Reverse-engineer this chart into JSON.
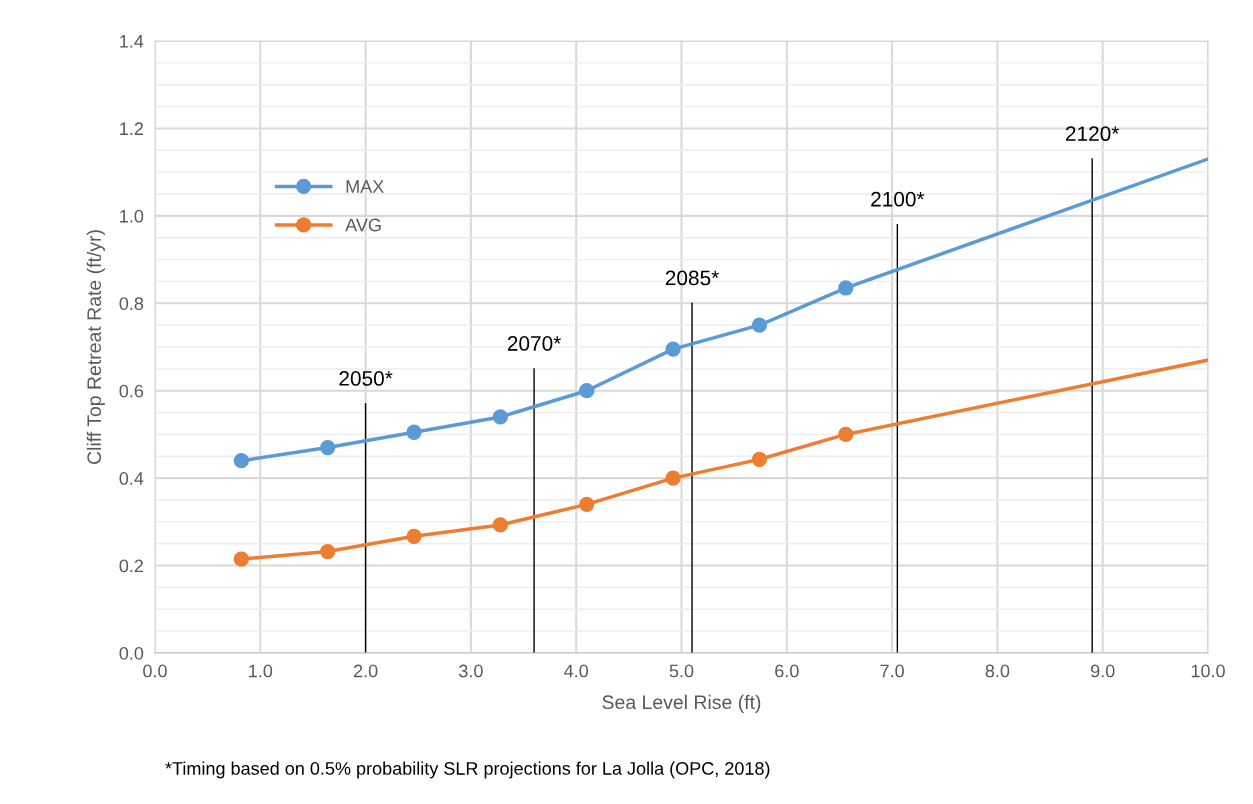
{
  "chart_data": {
    "type": "line",
    "xlabel": "Sea Level Rise (ft)",
    "ylabel": "Cliff Top Retreat Rate (ft/yr)",
    "xlim": [
      0,
      10
    ],
    "xticks": [
      {
        "value": 0,
        "label": "0.0"
      },
      {
        "value": 1,
        "label": "1.0"
      },
      {
        "value": 2,
        "label": "2.0"
      },
      {
        "value": 3,
        "label": "3.0"
      },
      {
        "value": 4,
        "label": "4.0"
      },
      {
        "value": 5,
        "label": "5.0"
      },
      {
        "value": 6,
        "label": "6.0"
      },
      {
        "value": 7,
        "label": "7.0"
      },
      {
        "value": 8,
        "label": "8.0"
      },
      {
        "value": 9,
        "label": "9.0"
      },
      {
        "value": 10,
        "label": "10.0"
      }
    ],
    "ylim": [
      0,
      1.4
    ],
    "yticks": [
      {
        "value": 0,
        "label": "0.0"
      },
      0.2,
      0.4,
      0.6,
      0.8,
      {
        "value": 1,
        "label": "1.0"
      },
      1.2,
      1.4
    ],
    "grid": true,
    "legend": "top left",
    "marker": "circle",
    "line_style": "solid",
    "series": [
      {
        "name": "MAX",
        "color": "#5b9bd5",
        "x": [
          0.82,
          1.64,
          2.46,
          3.28,
          4.1,
          4.92,
          5.74,
          6.56
        ],
        "values": [
          0.44,
          0.47,
          0.505,
          0.54,
          0.6,
          0.695,
          0.75,
          0.835
        ]
      },
      {
        "name": "AVG",
        "color": "#ed7d31",
        "x": [
          0.82,
          1.64,
          2.46,
          3.28,
          4.1,
          4.92,
          5.74,
          6.56
        ],
        "values": [
          0.215,
          0.232,
          0.267,
          0.293,
          0.34,
          0.4,
          0.443,
          0.5
        ]
      },
      {
        "color": "#5b9bd5",
        "marker": "none",
        "x": [
          6.56,
          10
        ],
        "values": [
          0.835,
          1.13
        ]
      },
      {
        "color": "#ed7d31",
        "marker": "none",
        "x": [
          6.56,
          10
        ],
        "values": [
          0.5,
          0.67
        ]
      },
      {
        "name": "2050*",
        "color": "#000000",
        "marker": "none",
        "x": [
          2.0,
          2.0
        ],
        "values": [
          0,
          0.57
        ]
      },
      {
        "name": "2070*",
        "color": "#000000",
        "marker": "none",
        "x": [
          3.6,
          3.6
        ],
        "values": [
          0,
          0.65
        ]
      },
      {
        "name": "2085*",
        "color": "#000000",
        "marker": "none",
        "x": [
          5.1,
          5.1
        ],
        "values": [
          0,
          0.8
        ]
      },
      {
        "name": "2100*",
        "color": "#000000",
        "marker": "none",
        "x": [
          7.05,
          7.05
        ],
        "values": [
          0,
          0.98
        ]
      },
      {
        "name": "2120*",
        "color": "#000000",
        "marker": "none",
        "x": [
          8.9,
          8.9
        ],
        "values": [
          0,
          1.13
        ]
      }
    ],
    "annotations": [
      "*Timing based on 0.5% probability SLR projections for La Jolla (OPC, 2018)"
    ]
  }
}
